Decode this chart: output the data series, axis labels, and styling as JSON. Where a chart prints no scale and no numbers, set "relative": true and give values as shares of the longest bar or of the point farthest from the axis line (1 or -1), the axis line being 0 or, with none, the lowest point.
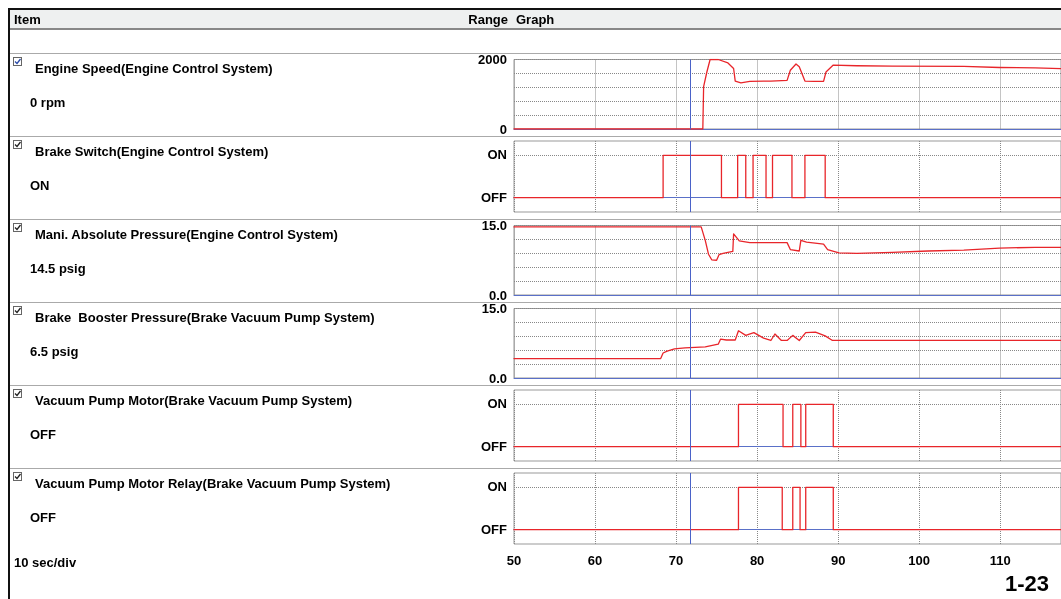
{
  "chart_data": [
    {
      "type": "line",
      "ylabel": "Engine Speed(Engine Control System)",
      "annotations": [
        "0 rpm",
        "Item",
        "Range",
        "Graph"
      ],
      "series": [
        {
          "color": "#e8252a",
          "x": [
            50,
            73.3,
            73.4,
            73.8,
            74.2,
            75.2,
            76.4,
            77.1,
            77.3,
            78.0,
            79.1,
            81.7,
            83.7,
            84.1,
            84.8,
            85.2,
            85.9,
            87.0,
            88.2,
            88.5,
            89.4,
            92.3,
            96.7,
            105.5,
            109.9,
            114.3,
            117.5
          ],
          "values": [
            0,
            0,
            1220,
            1640,
            2000,
            2000,
            1900,
            1740,
            1380,
            1330,
            1370,
            1380,
            1400,
            1690,
            1870,
            1790,
            1380,
            1370,
            1370,
            1640,
            1840,
            1820,
            1810,
            1800,
            1770,
            1760,
            1740
          ]
        }
      ],
      "xlim": [
        50,
        117.5
      ],
      "xticks": [
        50,
        60,
        70,
        80,
        90,
        100,
        110
      ],
      "ylim": [
        0,
        2000
      ],
      "yticks": [
        0,
        {
          "value": 400,
          "label": null
        },
        {
          "value": 800,
          "label": null
        },
        {
          "value": 1200,
          "label": null
        },
        {
          "value": 1600,
          "label": null
        },
        2000
      ],
      "grid": true,
      "tick_labels": "y",
      "ref_lines": [
        {
          "axis": "x",
          "value": 71.7,
          "color": "#4a62c8"
        }
      ]
    },
    {
      "type": "step",
      "ylabel": "Brake Switch(Engine Control System)",
      "relative": true,
      "annotations": [
        "ON",
        "ON",
        "OFF"
      ],
      "series": [
        {
          "color": "#e8252a",
          "x": [
            50,
            68.4,
            75.6,
            77.6,
            78.6,
            79.5,
            81.1,
            81.9,
            84.3,
            85.9,
            88.4,
            117.5
          ],
          "values": [
            0,
            1,
            0,
            1,
            0,
            1,
            0,
            1,
            0,
            1,
            0,
            0
          ]
        }
      ],
      "xlim": [
        50,
        117.5
      ],
      "xticks": [
        50,
        60,
        70,
        80,
        90,
        100,
        110
      ],
      "grid": true,
      "tick_labels": false,
      "ref_lines": [
        {
          "axis": "x",
          "value": 71.7,
          "color": "#4a62c8"
        }
      ]
    },
    {
      "type": "line",
      "ylabel": "Mani. Absolute Pressure(Engine Control System)",
      "annotations": [
        "14.5 psig"
      ],
      "series": [
        {
          "color": "#e8252a",
          "x": [
            50,
            73.1,
            73.6,
            74.0,
            74.4,
            75.0,
            75.3,
            75.8,
            77.0,
            77.1,
            77.8,
            79.1,
            83.7,
            84.1,
            85.2,
            85.4,
            86.1,
            88.2,
            88.7,
            90.1,
            92.3,
            96.7,
            101.1,
            105.5,
            109.9,
            114.3,
            117.5
          ],
          "values": [
            14.7,
            14.7,
            11.8,
            8.8,
            7.6,
            7.5,
            8.7,
            9.0,
            9.4,
            13.2,
            11.7,
            11.3,
            11.3,
            9.8,
            9.5,
            11.8,
            11.4,
            11.0,
            9.8,
            9.1,
            9.0,
            9.2,
            9.5,
            9.7,
            10.1,
            10.3,
            10.3
          ]
        }
      ],
      "xlim": [
        50,
        117.5
      ],
      "xticks": [
        50,
        60,
        70,
        80,
        90,
        100,
        110
      ],
      "ylim": [
        0,
        15
      ],
      "yticks": [
        {
          "value": 0,
          "label": "0.0"
        },
        {
          "value": 3,
          "label": null
        },
        {
          "value": 6,
          "label": null
        },
        {
          "value": 9,
          "label": null
        },
        {
          "value": 12,
          "label": null
        },
        {
          "value": 15,
          "label": "15.0"
        }
      ],
      "grid": true,
      "tick_labels": "y",
      "ref_lines": [
        {
          "axis": "x",
          "value": 71.7,
          "color": "#4a62c8"
        }
      ]
    },
    {
      "type": "line",
      "ylabel": "Brake  Booster Pressure(Brake Vacuum Pump System)",
      "annotations": [
        "6.5 psig"
      ],
      "series": [
        {
          "color": "#e8252a",
          "x": [
            50,
            68.1,
            68.4,
            68.9,
            69.8,
            71.1,
            73.6,
            75.2,
            75.5,
            76.2,
            77.3,
            77.7,
            78.6,
            79.6,
            80.8,
            81.7,
            82.2,
            83.0,
            83.7,
            84.4,
            85.2,
            86.0,
            87.2,
            88.4,
            89.3,
            117.5
          ],
          "values": [
            4.2,
            4.2,
            5.4,
            5.8,
            6.3,
            6.5,
            6.7,
            7.3,
            8.4,
            8.2,
            8.2,
            10.2,
            9.2,
            9.8,
            8.6,
            8.1,
            9.5,
            8.1,
            8.1,
            9.2,
            8.1,
            9.8,
            9.9,
            9.1,
            8.1,
            8.1
          ]
        }
      ],
      "xlim": [
        50,
        117.5
      ],
      "xticks": [
        50,
        60,
        70,
        80,
        90,
        100,
        110
      ],
      "ylim": [
        0,
        15
      ],
      "yticks": [
        {
          "value": 0,
          "label": "0.0"
        },
        {
          "value": 3,
          "label": null
        },
        {
          "value": 6,
          "label": null
        },
        {
          "value": 9,
          "label": null
        },
        {
          "value": 12,
          "label": null
        },
        {
          "value": 15,
          "label": "15.0"
        }
      ],
      "grid": true,
      "tick_labels": "y",
      "ref_lines": [
        {
          "axis": "x",
          "value": 71.7,
          "color": "#4a62c8"
        }
      ]
    },
    {
      "type": "step",
      "ylabel": "Vacuum Pump Motor(Brake Vacuum Pump System)",
      "relative": true,
      "annotations": [
        "OFF",
        "ON",
        "OFF"
      ],
      "series": [
        {
          "color": "#e8252a",
          "x": [
            50,
            77.7,
            83.2,
            84.4,
            85.4,
            86.0,
            89.4,
            117.5
          ],
          "values": [
            0,
            1,
            0,
            1,
            0,
            1,
            0,
            0
          ]
        }
      ],
      "xlim": [
        50,
        117.5
      ],
      "xticks": [
        50,
        60,
        70,
        80,
        90,
        100,
        110
      ],
      "grid": true,
      "tick_labels": false,
      "ref_lines": [
        {
          "axis": "x",
          "value": 71.7,
          "color": "#4a62c8"
        }
      ]
    },
    {
      "type": "step",
      "ylabel": "Vacuum Pump Motor Relay(Brake Vacuum Pump System)",
      "relative": true,
      "annotations": [
        "OFF",
        "ON",
        "OFF",
        "10 sec/div",
        "1-23"
      ],
      "series": [
        {
          "color": "#e8252a",
          "x": [
            50,
            77.7,
            83.1,
            84.4,
            85.3,
            86.0,
            89.4,
            117.5
          ],
          "values": [
            0,
            1,
            0,
            1,
            0,
            1,
            0,
            0
          ]
        }
      ],
      "xlim": [
        50,
        117.5
      ],
      "xticks": [
        50,
        60,
        70,
        80,
        90,
        100,
        110
      ],
      "grid": true,
      "tick_labels": "x",
      "ref_lines": [
        {
          "axis": "x",
          "value": 71.7,
          "color": "#4a62c8"
        }
      ]
    }
  ]
}
